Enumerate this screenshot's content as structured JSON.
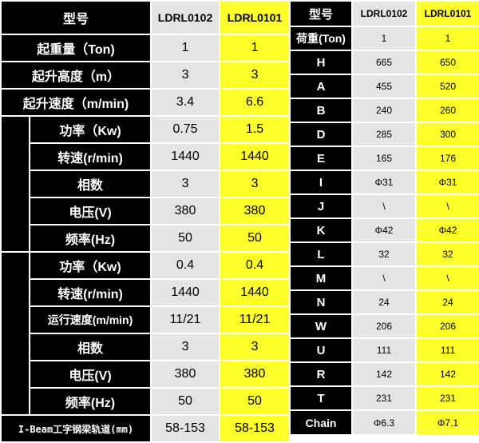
{
  "left_table": {
    "header": {
      "label": "型号",
      "model_a": "LDRL0102",
      "model_b": "LDRL0101"
    },
    "rows": [
      {
        "label": "起重量（Ton)",
        "a": "1",
        "b": "1"
      },
      {
        "label": "起升高度（m）",
        "a": "3",
        "b": "3"
      },
      {
        "label": "起升速度（m/min)",
        "a": "3.4",
        "b": "6.6"
      },
      {
        "label": "功率（Kw)",
        "a": "0.75",
        "b": "1.5"
      },
      {
        "label": "转速(r/min)",
        "a": "1440",
        "b": "1440"
      },
      {
        "label": "相数",
        "a": "3",
        "b": "3"
      },
      {
        "label": "电压(V)",
        "a": "380",
        "b": "380"
      },
      {
        "label": "频率(Hz)",
        "a": "50",
        "b": "50"
      },
      {
        "label": "功率（Kw)",
        "a": "0.4",
        "b": "0.4"
      },
      {
        "label": "转速(r/min)",
        "a": "1440",
        "b": "1440"
      },
      {
        "label": "运行速度(m/min)",
        "a": "11/21",
        "b": "11/21"
      },
      {
        "label": "相数",
        "a": "3",
        "b": "3"
      },
      {
        "label": "电压(V)",
        "a": "380",
        "b": "380"
      },
      {
        "label": "频率(Hz)",
        "a": "50",
        "b": "50"
      },
      {
        "label": "I-Beam工字钢梁轨道(mm)",
        "a": "58-153",
        "b": "58-153"
      }
    ]
  },
  "right_table": {
    "header": {
      "label": "型号",
      "model_a": "LDRL0102",
      "model_b": "LDRL0101"
    },
    "rows": [
      {
        "label": "荷重(Ton)",
        "a": "1",
        "b": "1"
      },
      {
        "label": "H",
        "a": "665",
        "b": "650"
      },
      {
        "label": "A",
        "a": "455",
        "b": "520"
      },
      {
        "label": "B",
        "a": "240",
        "b": "260"
      },
      {
        "label": "D",
        "a": "285",
        "b": "300"
      },
      {
        "label": "E",
        "a": "165",
        "b": "176"
      },
      {
        "label": "I",
        "a": "Φ31",
        "b": "Φ31"
      },
      {
        "label": "J",
        "a": "\\",
        "b": "\\"
      },
      {
        "label": "K",
        "a": "Φ42",
        "b": "Φ42"
      },
      {
        "label": "L",
        "a": "32",
        "b": "32"
      },
      {
        "label": "M",
        "a": "\\",
        "b": "\\"
      },
      {
        "label": "N",
        "a": "24",
        "b": "24"
      },
      {
        "label": "W",
        "a": "206",
        "b": "206"
      },
      {
        "label": "U",
        "a": "111",
        "b": "111"
      },
      {
        "label": "R",
        "a": "142",
        "b": "142"
      },
      {
        "label": "T",
        "a": "231",
        "b": "231"
      },
      {
        "label": "Chain",
        "a": "Φ6.3",
        "b": "Φ7.1"
      }
    ]
  },
  "colors": {
    "label_bg": "#000000",
    "model_a_bg": "#e4e4e4",
    "model_b_bg": "#ffff2b"
  }
}
